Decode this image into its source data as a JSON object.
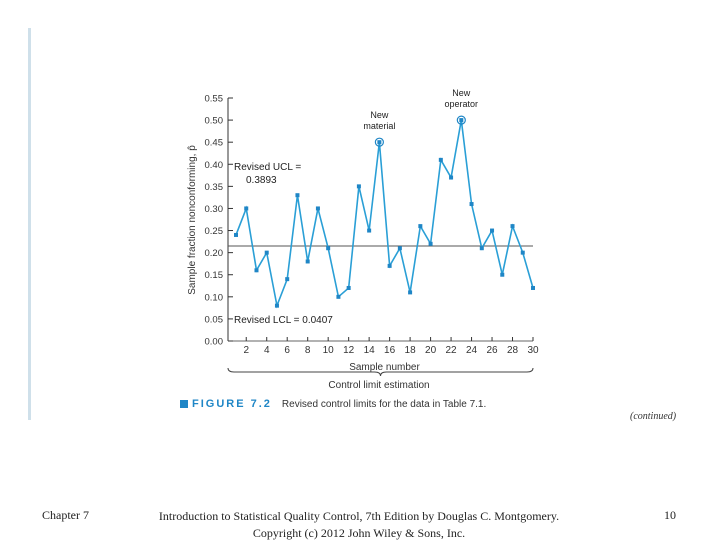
{
  "chart_data": {
    "type": "line",
    "title": "",
    "xlabel": "Sample number",
    "ylabel": "Sample fraction nonconforming, p̂",
    "x": [
      1,
      2,
      3,
      4,
      5,
      6,
      7,
      8,
      9,
      10,
      11,
      12,
      13,
      14,
      15,
      16,
      17,
      18,
      19,
      20,
      21,
      22,
      23,
      24,
      25,
      26,
      27,
      28,
      29,
      30
    ],
    "values": [
      0.24,
      0.3,
      0.16,
      0.2,
      0.08,
      0.14,
      0.33,
      0.18,
      0.3,
      0.21,
      0.1,
      0.12,
      0.35,
      0.25,
      0.45,
      0.17,
      0.21,
      0.11,
      0.26,
      0.22,
      0.41,
      0.37,
      0.5,
      0.31,
      0.21,
      0.25,
      0.15,
      0.26,
      0.2,
      0.12
    ],
    "xlim": [
      1,
      30
    ],
    "ylim": [
      0,
      0.55
    ],
    "x_ticks": [
      "2",
      "4",
      "6",
      "8",
      "10",
      "12",
      "14",
      "16",
      "18",
      "20",
      "22",
      "24",
      "26",
      "28",
      "30"
    ],
    "y_ticks": [
      "0.00",
      "0.05",
      "0.10",
      "0.15",
      "0.20",
      "0.25",
      "0.30",
      "0.35",
      "0.40",
      "0.45",
      "0.50",
      "0.55"
    ],
    "center_line": 0.215,
    "ucl_label": [
      "Revised UCL =",
      "0.3893"
    ],
    "lcl_label": "Revised LCL = 0.0407",
    "annotations": [
      {
        "text": [
          "New",
          "material"
        ],
        "sample": 15
      },
      {
        "text": [
          "New",
          "operator"
        ],
        "sample": 23
      }
    ],
    "brace_label": "Control limit estimation",
    "colors": {
      "line": "#2a9fd6",
      "marker": "#1f86c6",
      "center": "#555555",
      "axis": "#333333"
    }
  },
  "caption": {
    "figure_label": "FIGURE 7.2",
    "text": "Revised control limits for the data in Table 7.1."
  },
  "continued_note": "(continued)",
  "footer": {
    "chapter": "Chapter 7",
    "book_line1": "Introduction to Statistical Quality Control, 7th Edition by Douglas C. Montgomery.",
    "book_line2": "Copyright (c) 2012 John Wiley & Sons, Inc.",
    "page": "10"
  }
}
